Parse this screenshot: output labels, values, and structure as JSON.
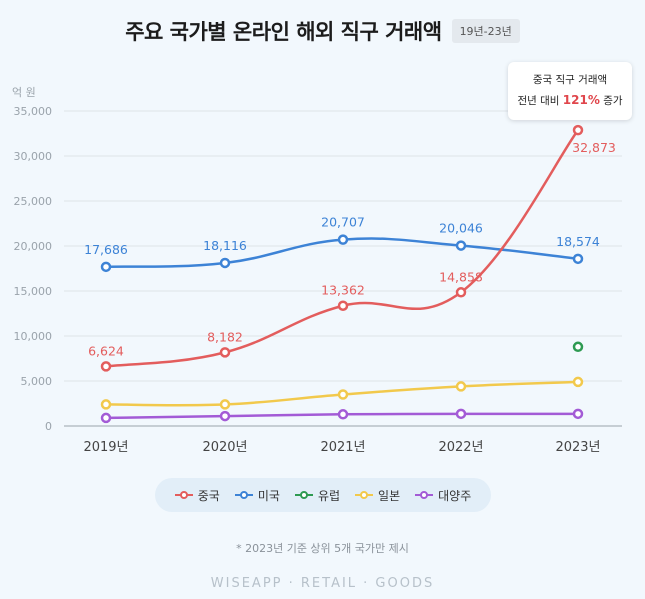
{
  "header": {
    "title": "주요 국가별 온라인 해외 직구 거래액",
    "period": "19년-23년"
  },
  "callout": {
    "line1": "중국 직구 거래액",
    "line2_prefix": "전년 대비 ",
    "line2_value": "121%",
    "line2_suffix": " 증가"
  },
  "footnote": "* 2023년 기준 상위 5개 국가만 제시",
  "brand": "WISEAPP · RETAIL · GOODS",
  "chart_data": {
    "type": "line",
    "unit_label": "억 원",
    "categories": [
      "2019년",
      "2020년",
      "2021년",
      "2022년",
      "2023년"
    ],
    "ylim": [
      0,
      35000
    ],
    "yticks": [
      0,
      5000,
      10000,
      15000,
      20000,
      25000,
      30000,
      35000
    ],
    "ytick_labels": [
      "0",
      "5,000",
      "10,000",
      "15,000",
      "20,000",
      "25,000",
      "30,000",
      "35,000"
    ],
    "grid": true,
    "legend_position": "bottom",
    "series": [
      {
        "name": "중국",
        "color": "#e35d5d",
        "values": [
          6624,
          8182,
          13362,
          14858,
          32873
        ],
        "labels": [
          "6,624",
          "8,182",
          "13,362",
          "14,858",
          "32,873"
        ]
      },
      {
        "name": "미국",
        "color": "#3d83d6",
        "values": [
          17686,
          18116,
          20707,
          20046,
          18574
        ],
        "labels": [
          "17,686",
          "18,116",
          "20,707",
          "20,046",
          "18,574"
        ]
      },
      {
        "name": "유럽",
        "color": "#2e9a52",
        "values": [
          null,
          null,
          null,
          null,
          8800
        ],
        "labels": []
      },
      {
        "name": "일본",
        "color": "#f2c94c",
        "values": [
          2400,
          2400,
          3500,
          4400,
          4900
        ],
        "labels": []
      },
      {
        "name": "대양주",
        "color": "#a35bd6",
        "values": [
          900,
          1100,
          1300,
          1350,
          1350
        ],
        "labels": []
      }
    ]
  }
}
